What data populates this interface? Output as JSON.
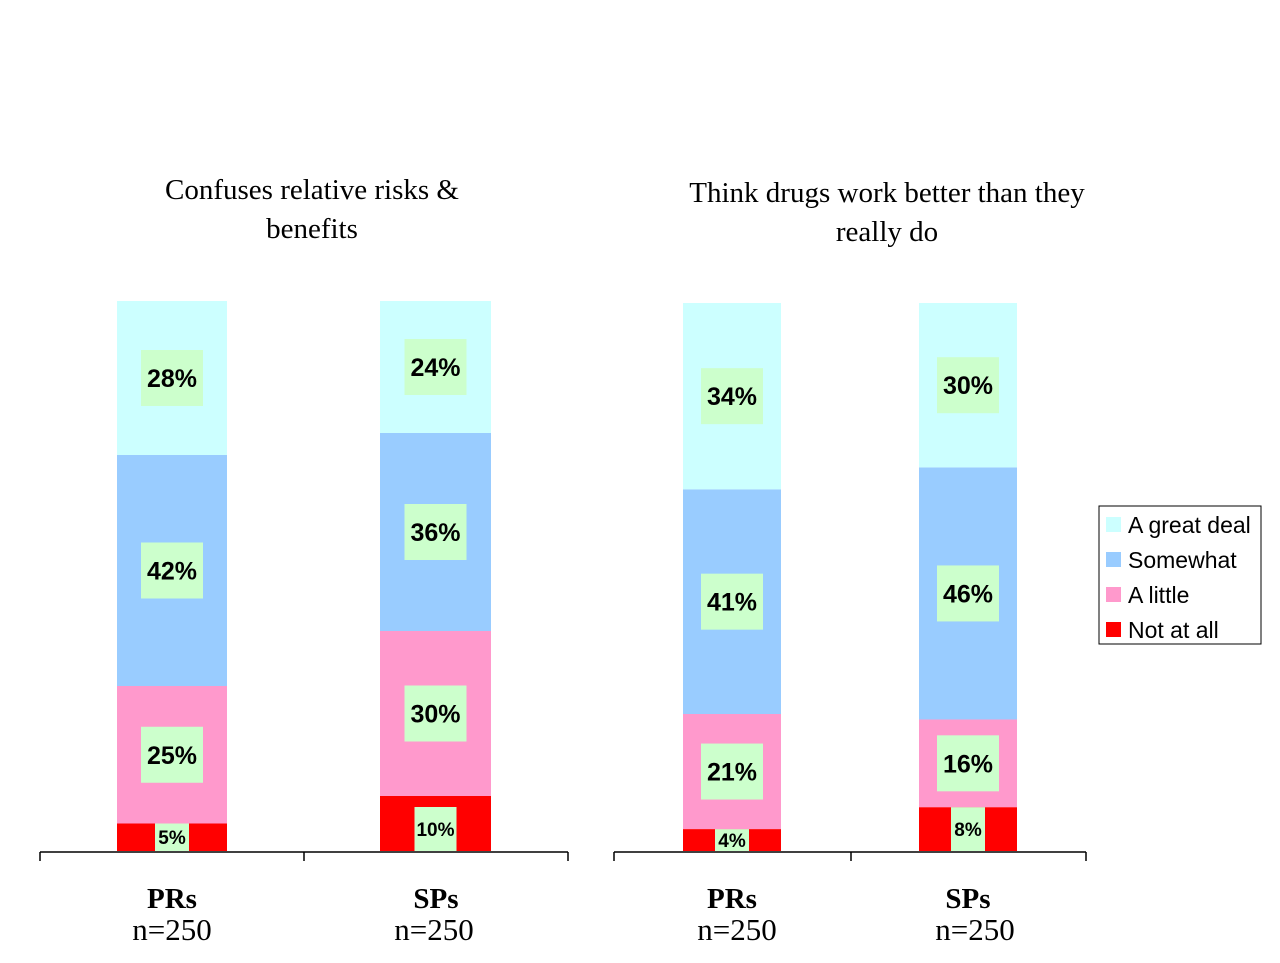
{
  "chart_data": [
    {
      "type": "bar",
      "stacked": true,
      "percent_stacked": true,
      "title": "Confuses relative risks & benefits",
      "title_lines": [
        "Confuses relative risks &",
        "benefits"
      ],
      "categories": [
        "PRs",
        "SPs"
      ],
      "category_sublabels": [
        "n=250",
        "n=250"
      ],
      "series": [
        {
          "name": "Not at all",
          "values": [
            5,
            10
          ],
          "labels": [
            "5%",
            "10%"
          ]
        },
        {
          "name": "A little",
          "values": [
            25,
            30
          ],
          "labels": [
            "25%",
            "30%"
          ]
        },
        {
          "name": "Somewhat",
          "values": [
            42,
            36
          ],
          "labels": [
            "42%",
            "36%"
          ]
        },
        {
          "name": "A great deal",
          "values": [
            28,
            24
          ],
          "labels": [
            "28%",
            "24%"
          ]
        }
      ],
      "xlabel": "",
      "ylabel": "",
      "ylim": [
        0,
        100
      ],
      "grid": false,
      "y_axis_visible": false
    },
    {
      "type": "bar",
      "stacked": true,
      "percent_stacked": true,
      "title": "Think drugs work better than they really do",
      "title_lines": [
        "Think drugs work better than they",
        "really do"
      ],
      "categories": [
        "PRs",
        "SPs"
      ],
      "category_sublabels": [
        "n=250",
        "n=250"
      ],
      "series": [
        {
          "name": "Not at all",
          "values": [
            4,
            8
          ],
          "labels": [
            "4%",
            "8%"
          ]
        },
        {
          "name": "A little",
          "values": [
            21,
            16
          ],
          "labels": [
            "21%",
            "16%"
          ]
        },
        {
          "name": "Somewhat",
          "values": [
            41,
            46
          ],
          "labels": [
            "41%",
            "46%"
          ]
        },
        {
          "name": "A great deal",
          "values": [
            34,
            30
          ],
          "labels": [
            "34%",
            "30%"
          ]
        }
      ],
      "xlabel": "",
      "ylabel": "",
      "ylim": [
        0,
        100
      ],
      "grid": false,
      "y_axis_visible": false
    }
  ],
  "legend": {
    "placement": "right",
    "items": [
      {
        "label": "A great deal",
        "color": "#ccffff"
      },
      {
        "label": "Somewhat",
        "color": "#99ccff"
      },
      {
        "label": "A little",
        "color": "#ff99cc"
      },
      {
        "label": "Not at all",
        "color": "#ff0000"
      }
    ]
  },
  "colors": {
    "Not at all": "#ff0000",
    "A little": "#ff99cc",
    "Somewhat": "#99ccff",
    "A great deal": "#ccffff",
    "label_background": "#ccffcc"
  }
}
